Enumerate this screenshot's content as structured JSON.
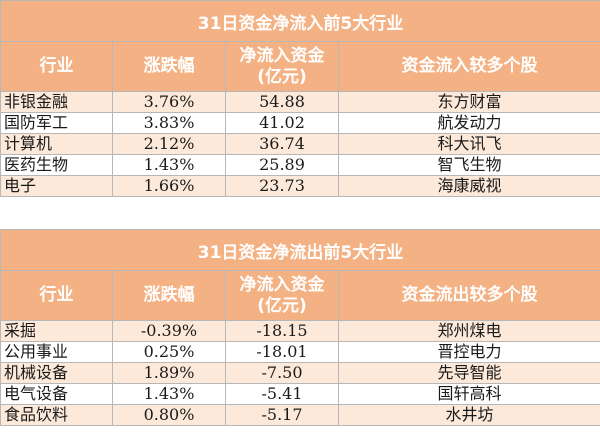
{
  "inflow": {
    "title": "31日资金净流入前5大行业",
    "headers": {
      "industry": "行业",
      "change": "涨跌幅",
      "netflow_line1": "净流入资金",
      "netflow_line2": "(亿元)",
      "stocks": "资金流入较多个股"
    },
    "rows": [
      {
        "industry": "非银金融",
        "change": "3.76%",
        "netflow": "54.88",
        "stock": "东方财富"
      },
      {
        "industry": "国防军工",
        "change": "3.83%",
        "netflow": "41.02",
        "stock": "航发动力"
      },
      {
        "industry": "计算机",
        "change": "2.12%",
        "netflow": "36.74",
        "stock": "科大讯飞"
      },
      {
        "industry": "医药生物",
        "change": "1.43%",
        "netflow": "25.89",
        "stock": "智飞生物"
      },
      {
        "industry": "电子",
        "change": "1.66%",
        "netflow": "23.73",
        "stock": "海康威视"
      }
    ]
  },
  "outflow": {
    "title": "31日资金净流出前5大行业",
    "headers": {
      "industry": "行业",
      "change": "涨跌幅",
      "netflow_line1": "净流入资金",
      "netflow_line2": "(亿元)",
      "stocks": "资金流出较多个股"
    },
    "rows": [
      {
        "industry": "采掘",
        "change": "-0.39%",
        "netflow": "-18.15",
        "stock": "郑州煤电"
      },
      {
        "industry": "公用事业",
        "change": "0.25%",
        "netflow": "-18.01",
        "stock": "晋控电力"
      },
      {
        "industry": "机械设备",
        "change": "1.89%",
        "netflow": "-7.50",
        "stock": "先导智能"
      },
      {
        "industry": "电气设备",
        "change": "1.43%",
        "netflow": "-5.41",
        "stock": "国轩高科"
      },
      {
        "industry": "食品饮料",
        "change": "0.80%",
        "netflow": "-5.17",
        "stock": "水井坊"
      }
    ]
  },
  "colors": {
    "header_bg": "#f4b183",
    "header_text": "#ffffff",
    "row_alt_bg": "#fde9d9",
    "border": "#b7b7b7"
  }
}
